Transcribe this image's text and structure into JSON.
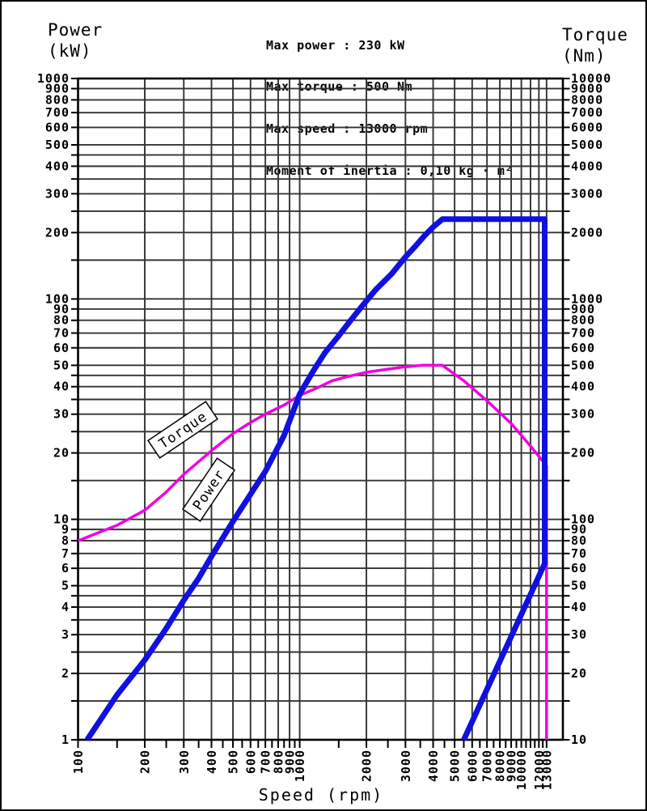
{
  "chart_data": {
    "type": "line",
    "title_lines": [
      "Max power : 230 kW",
      "Max torque : 500 Nm",
      "Max speed : 13000 rpm",
      "Moment of inertia : 0,10 kg · m²"
    ],
    "xlabel": "Speed (rpm)",
    "x_scale": "log",
    "y_scale": "log",
    "x_range": [
      100,
      15400
    ],
    "grid": true,
    "left_axis": {
      "title": [
        "Power",
        "(kW)"
      ],
      "range": [
        1,
        1000
      ],
      "tick_labels": [
        1000,
        900,
        800,
        700,
        600,
        500,
        400,
        300,
        200,
        100,
        90,
        80,
        70,
        60,
        50,
        40,
        30,
        20,
        10,
        9,
        8,
        7,
        6,
        5,
        4,
        3,
        2,
        1
      ]
    },
    "right_axis": {
      "title": [
        "Torque",
        "(Nm)"
      ],
      "range": [
        10,
        10000
      ],
      "tick_labels": [
        10000,
        9000,
        8000,
        7000,
        6000,
        5000,
        4000,
        3000,
        2000,
        1000,
        900,
        800,
        700,
        600,
        500,
        400,
        300,
        200,
        100,
        90,
        80,
        70,
        60,
        50,
        40,
        30,
        20,
        10
      ]
    },
    "x_tick_labels": [
      100,
      200,
      300,
      400,
      500,
      600,
      700,
      800,
      900,
      1000,
      2000,
      3000,
      4000,
      5000,
      6000,
      7000,
      8000,
      9000,
      10000,
      12000,
      13000
    ],
    "annotations": [
      "Torque",
      "Power"
    ],
    "colors": {
      "power": "#1010e0",
      "torque": "#ee00e0",
      "grid": "#333333",
      "frame": "#000000"
    },
    "series": [
      {
        "name": "Torque",
        "axis": "right",
        "color": "#ee00e0",
        "stroke_width": 3.5,
        "points": [
          [
            100,
            80
          ],
          [
            150,
            94
          ],
          [
            200,
            110
          ],
          [
            250,
            133
          ],
          [
            300,
            160
          ],
          [
            400,
            205
          ],
          [
            500,
            245
          ],
          [
            600,
            275
          ],
          [
            700,
            300
          ],
          [
            850,
            330
          ],
          [
            1000,
            365
          ],
          [
            1200,
            395
          ],
          [
            1400,
            425
          ],
          [
            1700,
            448
          ],
          [
            2000,
            465
          ],
          [
            2500,
            480
          ],
          [
            3000,
            492
          ],
          [
            3600,
            500
          ],
          [
            4400,
            500
          ],
          [
            5500,
            425
          ],
          [
            7000,
            345
          ],
          [
            9000,
            272
          ],
          [
            11000,
            215
          ],
          [
            13000,
            175
          ],
          [
            13000,
            10
          ]
        ]
      },
      {
        "name": "Power",
        "axis": "left",
        "color": "#1010e0",
        "stroke_width": 7,
        "points": [
          [
            110,
            1
          ],
          [
            150,
            1.6
          ],
          [
            200,
            2.3
          ],
          [
            250,
            3.2
          ],
          [
            300,
            4.3
          ],
          [
            350,
            5.4
          ],
          [
            400,
            6.8
          ],
          [
            500,
            9.8
          ],
          [
            600,
            13
          ],
          [
            700,
            16.5
          ],
          [
            850,
            24
          ],
          [
            1000,
            37
          ],
          [
            1150,
            47
          ],
          [
            1300,
            57
          ],
          [
            1500,
            68
          ],
          [
            1700,
            80
          ],
          [
            1900,
            92
          ],
          [
            2200,
            110
          ],
          [
            2600,
            130
          ],
          [
            3000,
            155
          ],
          [
            3300,
            172
          ],
          [
            3700,
            196
          ],
          [
            4000,
            212
          ],
          [
            4400,
            230
          ],
          [
            12750,
            230
          ],
          [
            12750,
            6.3
          ],
          [
            5500,
            1
          ]
        ]
      }
    ]
  }
}
